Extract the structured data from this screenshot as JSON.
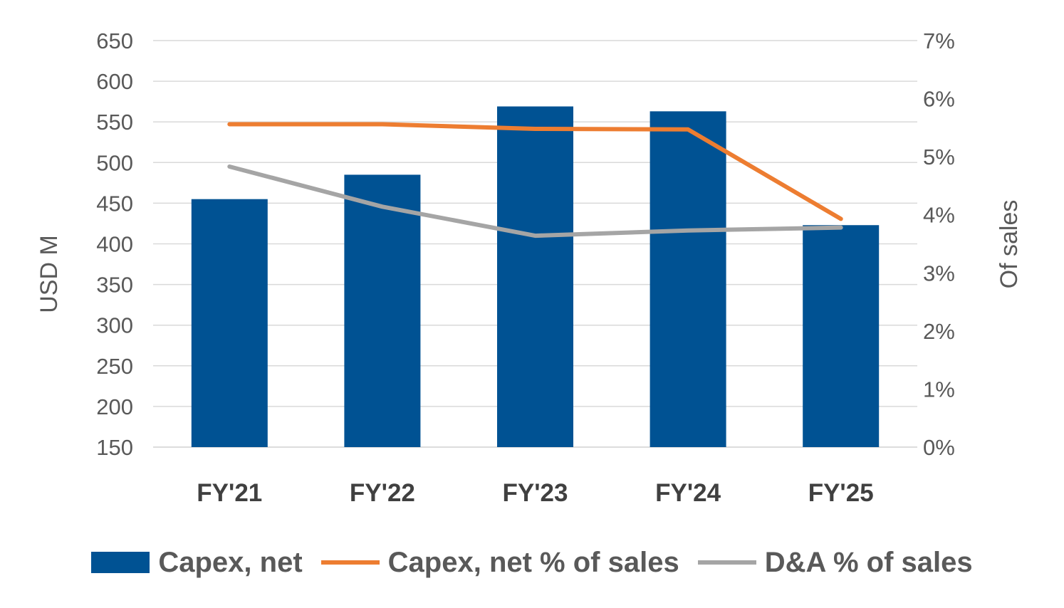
{
  "chart_data": {
    "type": "bar",
    "categories": [
      "FY'21",
      "FY'22",
      "FY'23",
      "FY'24",
      "FY'25"
    ],
    "series": [
      {
        "name": "Capex, net",
        "type": "bar",
        "axis": "left",
        "values": [
          455,
          485,
          569,
          563,
          423
        ],
        "color": "#005293"
      },
      {
        "name": "Capex, net % of sales",
        "type": "line",
        "axis": "right",
        "values": [
          5.56,
          5.56,
          5.48,
          5.47,
          3.93
        ],
        "color": "#ED7D31"
      },
      {
        "name": "D&A % of sales",
        "type": "line",
        "axis": "right",
        "values": [
          4.83,
          4.14,
          3.64,
          3.73,
          3.78
        ],
        "color": "#A5A5A5"
      }
    ],
    "ylabel": "USD M",
    "y2label": "Of sales",
    "ylim": [
      150,
      650
    ],
    "yticks": [
      "150",
      "200",
      "250",
      "300",
      "350",
      "400",
      "450",
      "500",
      "550",
      "600",
      "650"
    ],
    "y2lim": [
      0,
      7
    ],
    "y2ticks": [
      "0%",
      "1%",
      "2%",
      "3%",
      "4%",
      "5%",
      "6%",
      "7%"
    ],
    "grid": true,
    "legend_position": "bottom"
  }
}
